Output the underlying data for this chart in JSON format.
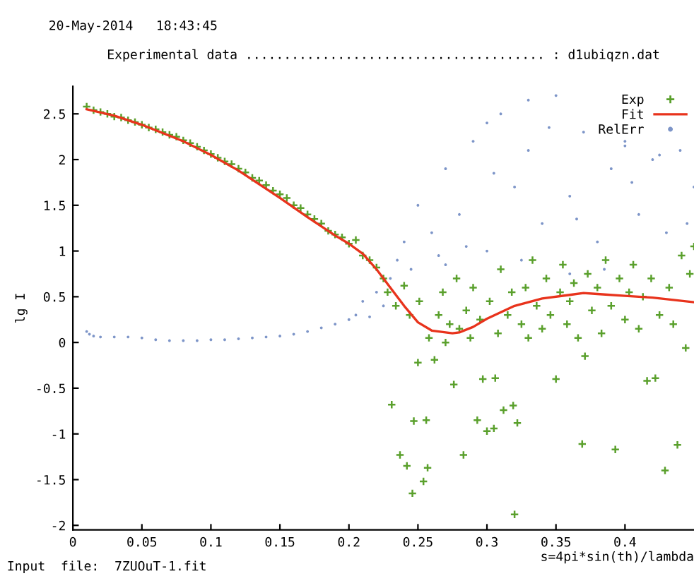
{
  "chart_data": {
    "type": "scatter",
    "title": "Experimental data ....................................... : d1ubiqzn.dat",
    "xlabel": "s=4pi*sin(th)/lambda",
    "ylabel": "lg I",
    "annotations": [
      "20-May-2014   18:43:45",
      "Input  file:  7ZUOuT-1.fit"
    ],
    "xlim": [
      0,
      0.45
    ],
    "ylim": [
      -2.05,
      2.8
    ],
    "xticks": [
      0,
      0.05,
      0.1,
      0.15,
      0.2,
      0.25,
      0.3,
      0.35,
      0.4
    ],
    "yticks": [
      -2,
      -1.5,
      -1,
      -0.5,
      0,
      0.5,
      1,
      1.5,
      2,
      2.5
    ],
    "grid": false,
    "legend": "top right",
    "series": [
      {
        "name": "Exp",
        "marker": "cross",
        "color": "#5aa02c",
        "x": [
          0.01,
          0.015,
          0.02,
          0.025,
          0.03,
          0.035,
          0.04,
          0.045,
          0.05,
          0.055,
          0.06,
          0.065,
          0.07,
          0.075,
          0.08,
          0.085,
          0.09,
          0.095,
          0.1,
          0.105,
          0.11,
          0.115,
          0.12,
          0.125,
          0.13,
          0.135,
          0.14,
          0.145,
          0.15,
          0.155,
          0.16,
          0.165,
          0.17,
          0.175,
          0.18,
          0.185,
          0.19,
          0.195,
          0.2,
          0.205,
          0.21,
          0.215,
          0.22,
          0.225,
          0.228,
          0.231,
          0.234,
          0.237,
          0.24,
          0.242,
          0.244,
          0.246,
          0.247,
          0.25,
          0.251,
          0.254,
          0.256,
          0.257,
          0.258,
          0.262,
          0.265,
          0.268,
          0.27,
          0.273,
          0.276,
          0.278,
          0.28,
          0.283,
          0.285,
          0.288,
          0.29,
          0.293,
          0.295,
          0.297,
          0.3,
          0.302,
          0.305,
          0.306,
          0.308,
          0.31,
          0.312,
          0.315,
          0.318,
          0.319,
          0.32,
          0.322,
          0.325,
          0.328,
          0.33,
          0.333,
          0.336,
          0.34,
          0.343,
          0.346,
          0.35,
          0.353,
          0.355,
          0.358,
          0.36,
          0.363,
          0.366,
          0.369,
          0.371,
          0.373,
          0.376,
          0.38,
          0.383,
          0.386,
          0.39,
          0.393,
          0.396,
          0.4,
          0.403,
          0.406,
          0.41,
          0.413,
          0.416,
          0.419,
          0.422,
          0.425,
          0.429,
          0.432,
          0.435,
          0.438,
          0.441,
          0.444,
          0.447,
          0.45
        ],
        "values": [
          2.58,
          2.54,
          2.52,
          2.5,
          2.47,
          2.46,
          2.43,
          2.41,
          2.38,
          2.35,
          2.33,
          2.3,
          2.27,
          2.25,
          2.21,
          2.18,
          2.14,
          2.1,
          2.06,
          2.02,
          1.98,
          1.95,
          1.9,
          1.86,
          1.8,
          1.77,
          1.72,
          1.66,
          1.62,
          1.58,
          1.5,
          1.47,
          1.4,
          1.35,
          1.3,
          1.22,
          1.18,
          1.15,
          1.08,
          1.12,
          0.95,
          0.9,
          0.82,
          0.7,
          0.55,
          -0.68,
          0.4,
          -1.23,
          0.62,
          -1.35,
          0.3,
          -1.65,
          -0.86,
          -0.22,
          0.45,
          -1.52,
          -0.85,
          -1.37,
          0.05,
          -0.19,
          0.3,
          0.55,
          0.0,
          0.2,
          -0.46,
          0.7,
          0.15,
          -1.23,
          0.35,
          0.05,
          0.6,
          -0.85,
          0.25,
          -0.4,
          -0.97,
          0.45,
          -0.94,
          -0.39,
          0.1,
          0.8,
          -0.74,
          0.3,
          0.55,
          -0.69,
          -1.88,
          -0.88,
          0.2,
          0.6,
          0.05,
          0.9,
          0.4,
          0.15,
          0.7,
          0.3,
          -0.4,
          0.55,
          0.85,
          0.2,
          0.45,
          0.65,
          0.05,
          -1.11,
          -0.15,
          0.75,
          0.35,
          0.6,
          0.1,
          0.9,
          0.4,
          -1.17,
          0.7,
          0.25,
          0.55,
          0.85,
          0.15,
          0.5,
          -0.42,
          0.7,
          -0.39,
          0.3,
          -1.4,
          0.6,
          0.2,
          -1.12,
          0.95,
          -0.06,
          0.75,
          1.05
        ]
      },
      {
        "name": "Fit",
        "type": "line",
        "color": "#e8331c",
        "x": [
          0.01,
          0.03,
          0.05,
          0.08,
          0.1,
          0.12,
          0.15,
          0.17,
          0.19,
          0.2,
          0.21,
          0.22,
          0.23,
          0.24,
          0.25,
          0.26,
          0.27,
          0.275,
          0.28,
          0.29,
          0.3,
          0.32,
          0.34,
          0.36,
          0.37,
          0.38,
          0.4,
          0.42,
          0.45
        ],
        "values": [
          2.55,
          2.48,
          2.38,
          2.2,
          2.05,
          1.88,
          1.58,
          1.37,
          1.17,
          1.08,
          0.97,
          0.8,
          0.6,
          0.4,
          0.22,
          0.13,
          0.11,
          0.1,
          0.11,
          0.17,
          0.26,
          0.4,
          0.48,
          0.52,
          0.54,
          0.53,
          0.51,
          0.49,
          0.44
        ]
      },
      {
        "name": "RelErr",
        "marker": "circle",
        "color": "#7d95c8",
        "x": [
          0.01,
          0.012,
          0.015,
          0.02,
          0.03,
          0.04,
          0.05,
          0.06,
          0.07,
          0.08,
          0.09,
          0.1,
          0.11,
          0.12,
          0.13,
          0.14,
          0.15,
          0.16,
          0.17,
          0.18,
          0.19,
          0.2,
          0.205,
          0.21,
          0.215,
          0.22,
          0.225,
          0.23,
          0.235,
          0.24,
          0.245,
          0.25,
          0.26,
          0.27,
          0.28,
          0.29,
          0.3,
          0.31,
          0.32,
          0.33,
          0.34,
          0.35,
          0.36,
          0.37,
          0.38,
          0.39,
          0.4,
          0.41,
          0.42,
          0.43,
          0.44,
          0.45,
          0.265,
          0.285,
          0.305,
          0.325,
          0.345,
          0.365,
          0.385,
          0.405,
          0.425,
          0.445,
          0.33,
          0.36,
          0.4,
          0.3,
          0.27
        ],
        "values": [
          0.12,
          0.09,
          0.07,
          0.06,
          0.06,
          0.06,
          0.05,
          0.03,
          0.02,
          0.02,
          0.02,
          0.03,
          0.03,
          0.04,
          0.05,
          0.06,
          0.07,
          0.09,
          0.12,
          0.16,
          0.2,
          0.25,
          0.3,
          0.45,
          0.28,
          0.55,
          0.4,
          0.7,
          0.9,
          1.1,
          0.8,
          1.5,
          1.2,
          1.9,
          1.4,
          2.2,
          1.0,
          2.5,
          1.7,
          2.1,
          1.3,
          2.7,
          1.6,
          2.3,
          1.1,
          1.9,
          2.15,
          1.4,
          2.0,
          1.2,
          2.1,
          1.7,
          0.95,
          1.05,
          1.85,
          0.9,
          2.35,
          1.35,
          0.8,
          1.75,
          2.05,
          1.3,
          2.65,
          0.75,
          2.2,
          2.4,
          0.85
        ]
      }
    ]
  }
}
